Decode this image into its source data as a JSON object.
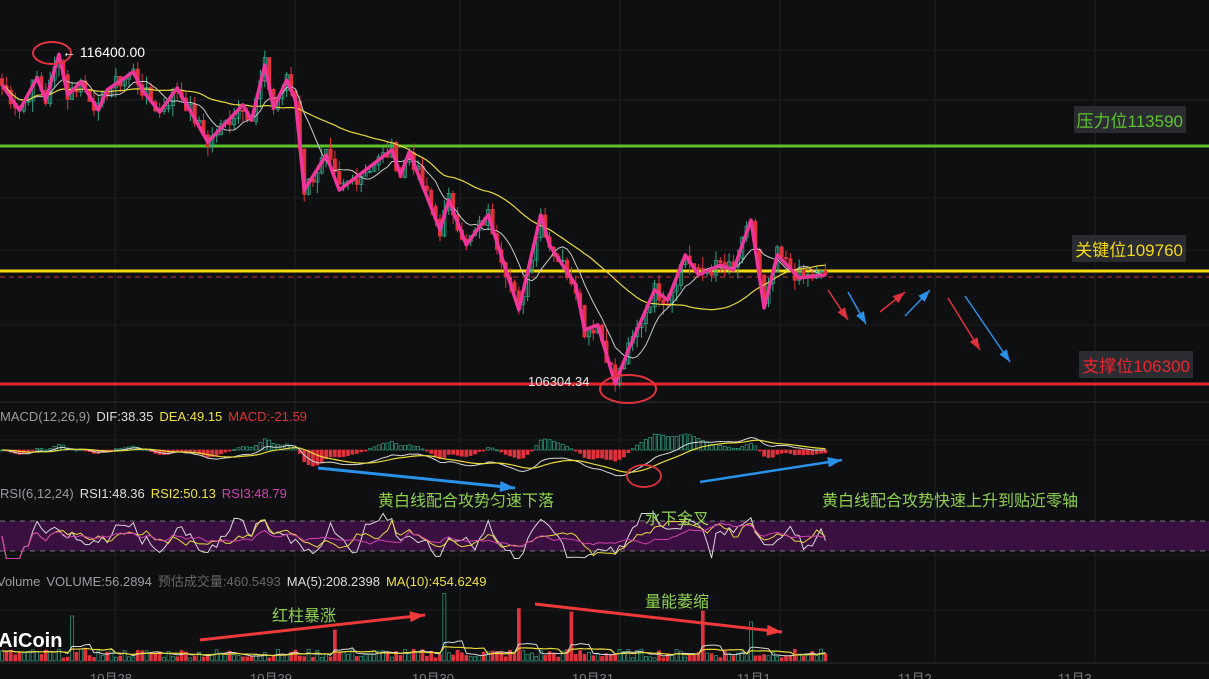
{
  "chart_data": {
    "type": "candlestick",
    "title": "",
    "price_range": [
      104000,
      118000
    ],
    "zigzag": {
      "bar": [
        0,
        4,
        8,
        10,
        13,
        15,
        18,
        22,
        24,
        30,
        32,
        36,
        40,
        47,
        55,
        57,
        60,
        62,
        65,
        67,
        69,
        74,
        77,
        89,
        91,
        93,
        100,
        102,
        106,
        111,
        118,
        123,
        125,
        131,
        133,
        136,
        140,
        143,
        149,
        152,
        156,
        159,
        164,
        167,
        171,
        174,
        177,
        182,
        188
      ],
      "price": [
        115460,
        114690,
        115670,
        115000,
        116400,
        115150,
        115550,
        114690,
        115310,
        115860,
        115310,
        114630,
        115370,
        113710,
        114850,
        114390,
        116070,
        114750,
        115610,
        115000,
        112240,
        113310,
        112240,
        113470,
        112700,
        113410,
        111020,
        111940,
        110560,
        111480,
        108570,
        111480,
        110560,
        109330,
        107950,
        108110,
        106304,
        107340,
        109180,
        108870,
        110250,
        109640,
        109940,
        109790,
        111320,
        108630,
        110250,
        109550,
        109640
      ]
    },
    "levels": [
      {
        "label": "压力位113590",
        "price": 113590,
        "color": "#5ec22a"
      },
      {
        "label": "关键位109760",
        "price": 109760,
        "color": "#f5d90a"
      },
      {
        "label": "支撑位106300",
        "price": 106300,
        "color": "#e8252f"
      }
    ],
    "high_label": "116400.00",
    "low_label": "106304.34",
    "x_ticks": [
      "10月28",
      "10月29",
      "10月30",
      "10月31",
      "11月1",
      "11月2",
      "11月3"
    ],
    "volume_spikes": {
      "bar": [
        16,
        76,
        101,
        118,
        130,
        160,
        171
      ],
      "value": [
        900,
        620,
        1350,
        1050,
        980,
        1000,
        780
      ]
    },
    "colors": {
      "up": "#2fa585",
      "down": "#e0323c",
      "zigzag": "#f0359a",
      "ma_short": "#c9c9c9",
      "ma_long": "#e8d83a",
      "rsi_band": "#3a1040"
    }
  },
  "macd": {
    "name": "MACD(12,26,9)",
    "dif": "DIF:38.35",
    "dea": "DEA:49.15",
    "macd": "MACD:-21.59"
  },
  "rsi": {
    "name": "RSI(6,12,24)",
    "rsi1": "RSI1:48.36",
    "rsi2": "RSI2:50.13",
    "rsi3": "RSI3:48.79"
  },
  "volume": {
    "name": "Volume",
    "volume": "VOLUME:56.2894",
    "est": "预估成交量:460.5493",
    "ma5": "MA(5):208.2398",
    "ma10": "MA(10):454.6249"
  },
  "notes": {
    "macd_down": "黄白线配合攻势匀速下落",
    "macd_up": "黄白线配合攻势快速上升到贴近零轴",
    "golden_cross": "水下金叉",
    "vol_up": "红柱暴涨",
    "vol_shrink": "量能萎缩"
  },
  "watermark": "AiCoin"
}
